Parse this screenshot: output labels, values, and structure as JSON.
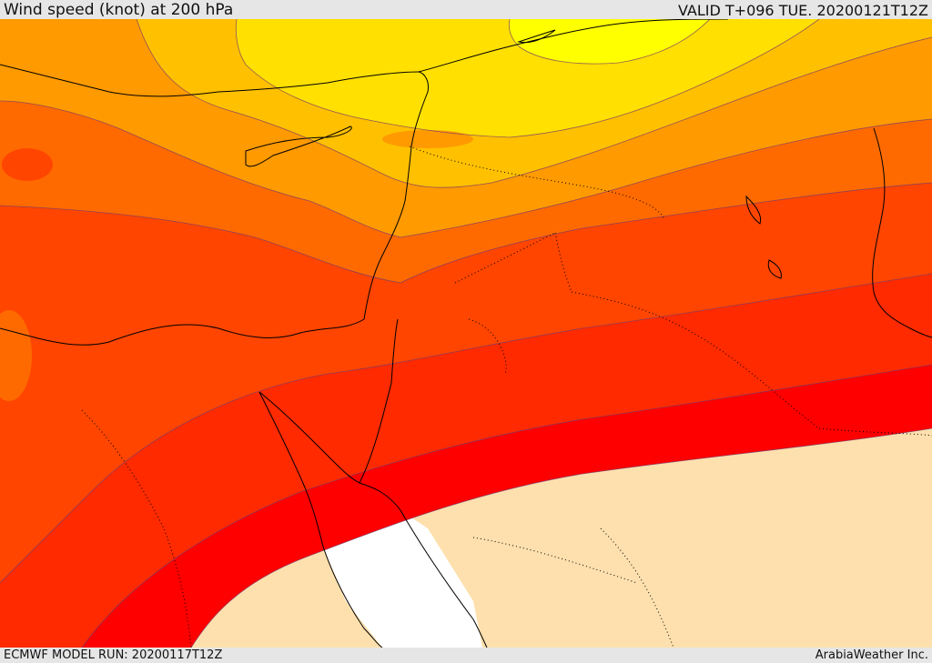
{
  "header": {
    "title": "Wind speed (knot) at 200 hPa",
    "valid": "VALID T+096 TUE. 20200121T12Z"
  },
  "footer": {
    "model_run": "ECMWF MODEL RUN: 20200117T12Z",
    "credit": "ArabiaWeather Inc."
  },
  "colors": {
    "background_land": "#fde0ad",
    "sea": "#ffffff",
    "bands": [
      "#ffff00",
      "#ffe000",
      "#ffc000",
      "#ff9a00",
      "#ff6a00",
      "#ff4500",
      "#ff2a00",
      "#ff0000"
    ]
  }
}
